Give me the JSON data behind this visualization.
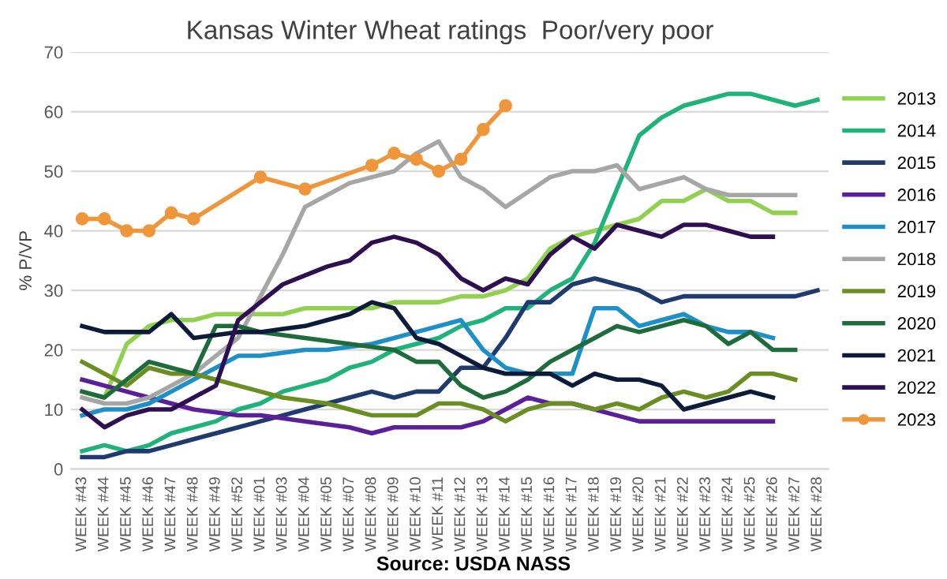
{
  "chart_data": {
    "type": "line",
    "title": "Kansas Winter Wheat ratings  Poor/very poor",
    "ylabel": "% P/VP",
    "categories": [
      "WEEK #43",
      "WEEK #44",
      "WEEK #45",
      "WEEK #46",
      "WEEK #47",
      "WEEK #48",
      "WEEK #49",
      "WEEK #52",
      "WEEK #01",
      "WEEK #03",
      "WEEK #04",
      "WEEK #05",
      "WEEK #07",
      "WEEK #08",
      "WEEK #09",
      "WEEK #10",
      "WEEK #11",
      "WEEK #12",
      "WEEK #13",
      "WEEK #14",
      "WEEK #15",
      "WEEK #16",
      "WEEK #17",
      "WEEK #18",
      "WEEK #19",
      "WEEK #20",
      "WEEK #21",
      "WEEK #22",
      "WEEK #23",
      "WEEK #24",
      "WEEK #25",
      "WEEK #26",
      "WEEK #27",
      "WEEK #28"
    ],
    "ylim": [
      0,
      70
    ],
    "yticks": [
      0,
      10,
      20,
      30,
      40,
      50,
      60,
      70
    ],
    "grid": "y",
    "legend": "right",
    "series": [
      {
        "name": "2013",
        "color": "#92d050",
        "marker": "none",
        "values": [
          13,
          12,
          21,
          24,
          25,
          25,
          26,
          26,
          26,
          26,
          27,
          27,
          27,
          27,
          28,
          28,
          28,
          29,
          29,
          30,
          32,
          37,
          39,
          40,
          41,
          42,
          45,
          45,
          47,
          45,
          45,
          43,
          43,
          null
        ]
      },
      {
        "name": "2014",
        "color": "#1fb27a",
        "marker": "none",
        "values": [
          3,
          4,
          3,
          4,
          6,
          7,
          8,
          10,
          11,
          13,
          14,
          15,
          17,
          18,
          20,
          21,
          22,
          24,
          25,
          27,
          27,
          30,
          32,
          38,
          47,
          56,
          59,
          61,
          62,
          63,
          63,
          62,
          61,
          62
        ]
      },
      {
        "name": "2015",
        "color": "#1f3a6e",
        "marker": "none",
        "values": [
          2,
          2,
          3,
          3,
          4,
          5,
          6,
          7,
          8,
          9,
          10,
          11,
          12,
          13,
          12,
          13,
          13,
          17,
          17,
          22,
          28,
          28,
          31,
          32,
          31,
          30,
          28,
          29,
          29,
          29,
          29,
          29,
          29,
          30
        ]
      },
      {
        "name": "2016",
        "color": "#5b1f9a",
        "marker": "none",
        "values": [
          15,
          14,
          13,
          12,
          11,
          10,
          9.5,
          9,
          9,
          8.5,
          8,
          7.5,
          7,
          6,
          7,
          7,
          7,
          7,
          8,
          10,
          12,
          11,
          11,
          10,
          9,
          8,
          8,
          8,
          8,
          8,
          8,
          8,
          null,
          null
        ]
      },
      {
        "name": "2017",
        "color": "#1f8fc8",
        "marker": "none",
        "values": [
          9,
          10,
          10,
          11,
          13,
          15,
          17,
          19,
          19,
          19.5,
          20,
          20,
          20.5,
          21,
          22,
          23,
          24,
          25,
          20,
          17,
          16,
          16,
          16,
          27,
          27,
          24,
          25,
          26,
          24,
          23,
          23,
          22,
          null,
          null
        ]
      },
      {
        "name": "2018",
        "color": "#a6a6a6",
        "marker": "none",
        "values": [
          12,
          11,
          11,
          12,
          14,
          16,
          19,
          22,
          29,
          36,
          44,
          46,
          48,
          49,
          50,
          53,
          55,
          49,
          47,
          44,
          46.5,
          49,
          50,
          50,
          51,
          47,
          48,
          49,
          47,
          46,
          46,
          46,
          46,
          null
        ]
      },
      {
        "name": "2019",
        "color": "#6b8e23",
        "marker": "none",
        "values": [
          18,
          16,
          14,
          17,
          16,
          16,
          15,
          14,
          13,
          12,
          11.5,
          11,
          10,
          9,
          9,
          9,
          11,
          11,
          10,
          8,
          10,
          11,
          11,
          10,
          11,
          10,
          12,
          13,
          12,
          13,
          16,
          16,
          15,
          null
        ]
      },
      {
        "name": "2020",
        "color": "#1e6b3c",
        "marker": "none",
        "values": [
          13,
          12,
          15,
          18,
          17,
          16,
          24,
          24,
          23,
          22.5,
          22,
          21.5,
          21,
          20.5,
          20,
          18,
          18,
          14,
          12,
          13,
          15,
          18,
          20,
          22,
          24,
          23,
          24,
          25,
          24,
          21,
          23,
          20,
          20,
          null
        ]
      },
      {
        "name": "2021",
        "color": "#0d1b3a",
        "marker": "none",
        "values": [
          24,
          23,
          23,
          23,
          26,
          22,
          22.5,
          23,
          23,
          23.5,
          24,
          25,
          26,
          28,
          27,
          22,
          21,
          19,
          17,
          16,
          16,
          16,
          14,
          16,
          15,
          15,
          14,
          10,
          11,
          12,
          13,
          12,
          null,
          null
        ]
      },
      {
        "name": "2022",
        "color": "#2e0f4f",
        "marker": "none",
        "values": [
          10,
          7,
          9,
          10,
          10,
          12,
          14,
          25,
          28,
          31,
          32.5,
          34,
          35,
          38,
          39,
          38,
          36,
          32,
          30,
          32,
          31,
          36,
          39,
          37,
          41,
          40,
          39,
          41,
          41,
          40,
          39,
          39,
          null,
          null
        ]
      },
      {
        "name": "2023",
        "color": "#f0963a",
        "marker": "circle",
        "values": [
          42,
          42,
          40,
          40,
          43,
          42,
          null,
          null,
          49,
          null,
          47,
          null,
          null,
          51,
          53,
          52,
          50,
          52,
          57,
          61,
          null,
          null,
          null,
          null,
          null,
          null,
          null,
          null,
          null,
          null,
          null,
          null,
          null,
          null
        ]
      }
    ],
    "annotations": [
      "Source: USDA NASS"
    ]
  }
}
